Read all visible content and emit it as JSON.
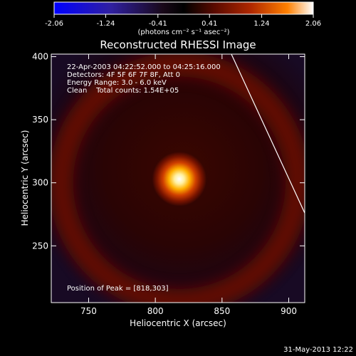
{
  "chart_data": {
    "type": "heatmap",
    "title": "Reconstructed RHESSI Image",
    "xlabel": "Heliocentric X (arcsec)",
    "ylabel": "Heliocentric Y (arcsec)",
    "xlim": [
      722,
      912
    ],
    "ylim": [
      205,
      402
    ],
    "x_ticks": [
      750,
      800,
      850,
      900
    ],
    "y_ticks": [
      250,
      300,
      350,
      400
    ],
    "colorbar": {
      "ticks": [
        "-2.06",
        "-1.24",
        "-0.41",
        "0.41",
        "1.24",
        "2.06"
      ],
      "range": [
        -2.06,
        2.06
      ],
      "units_label": "(photons cm⁻² s⁻¹ asec⁻²)",
      "colormap": [
        "#0000ff",
        "#3020a0",
        "#180818",
        "#000000",
        "#5a0a00",
        "#b02800",
        "#ff8000",
        "#ffffff"
      ]
    },
    "annotations": [
      "22-Apr-2003 04:22:52.000 to 04:25:16.000",
      "Detectors: 4F 5F 6F 7F 8F, Att 0",
      "Energy Range: 3.0 - 6.0 keV",
      "Clean    Total counts: 1.54E+05"
    ],
    "peak_label": "Position of Peak = [818,303]",
    "peak": {
      "x": 818,
      "y": 303,
      "value": 2.06
    },
    "ring": {
      "center_x": 818,
      "center_y": 300,
      "radius": 48,
      "level": 0.45
    },
    "limb_line": [
      [
        857,
        402
      ],
      [
        912,
        276
      ]
    ]
  },
  "footer": {
    "timestamp": "31-May-2013 12:22"
  }
}
